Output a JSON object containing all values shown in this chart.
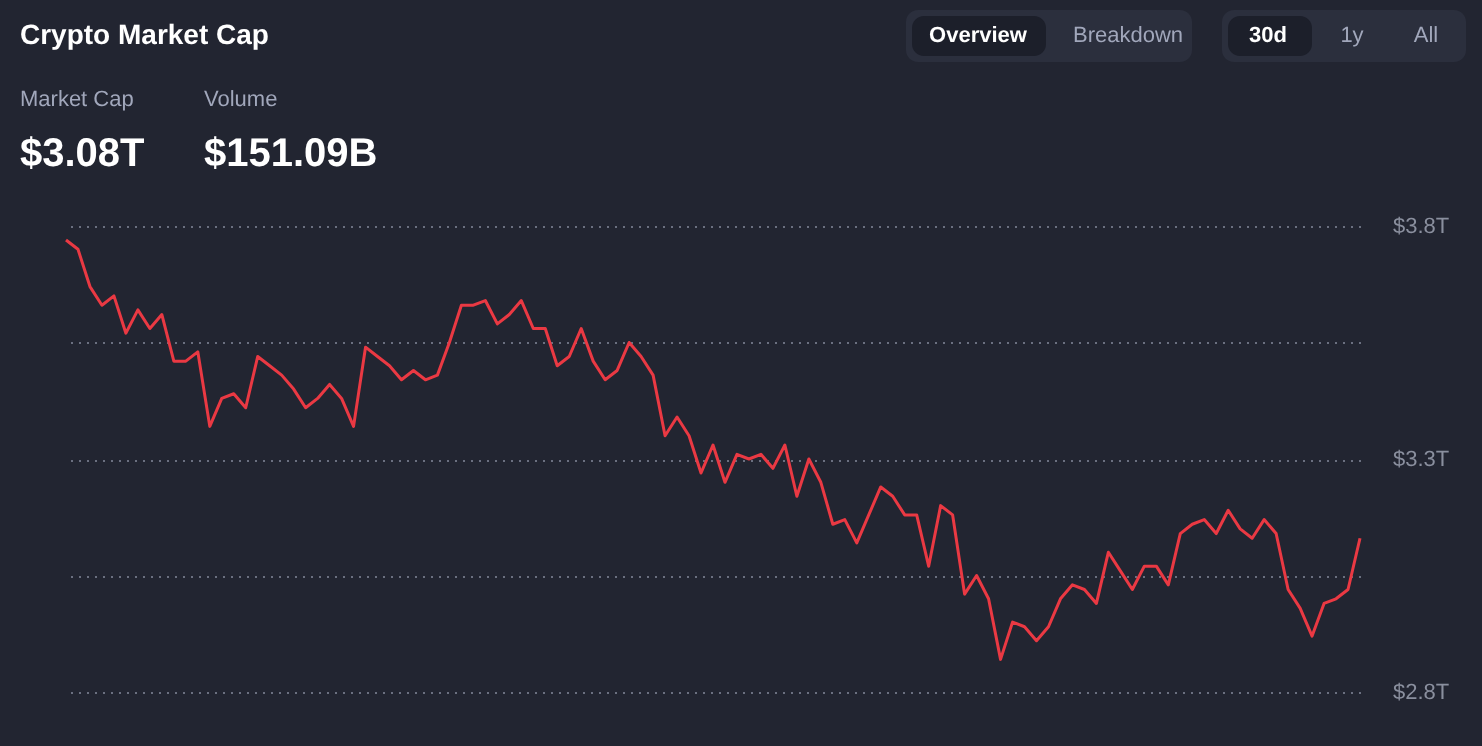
{
  "chart_data": {
    "type": "line",
    "title": "Crypto Market Cap",
    "annotations": [
      "Market Cap",
      "$3.08T",
      "Volume",
      "$151.09B",
      "Overview",
      "Breakdown",
      "30d",
      "1y",
      "All"
    ],
    "categories": [
      null,
      null,
      null,
      null,
      null,
      null,
      null,
      null,
      null,
      null,
      null,
      null,
      null,
      null,
      null,
      null,
      null,
      null,
      null,
      null,
      null,
      null,
      null,
      null,
      null,
      null,
      null,
      null,
      null,
      null,
      null,
      null,
      null,
      null,
      null,
      null,
      null,
      null,
      null,
      null,
      null,
      null,
      null,
      null,
      null,
      null,
      null,
      null,
      null,
      null,
      null,
      null,
      null,
      null,
      null,
      null,
      null,
      null,
      null,
      null,
      null,
      null,
      null,
      null,
      null,
      null,
      null,
      null,
      null,
      null,
      null,
      null,
      null,
      null,
      null,
      null,
      null,
      null,
      null,
      null,
      null,
      null,
      null,
      null,
      null,
      null,
      null,
      null,
      null,
      null,
      null,
      null,
      null,
      null,
      null,
      null,
      null,
      null,
      null,
      null,
      null,
      null,
      null,
      null,
      null,
      null,
      null,
      null,
      null
    ],
    "values": [
      3.77,
      3.75,
      3.67,
      3.63,
      3.65,
      3.57,
      3.62,
      3.58,
      3.61,
      3.51,
      3.51,
      3.53,
      3.37,
      3.43,
      3.44,
      3.41,
      3.52,
      3.5,
      3.48,
      3.45,
      3.41,
      3.43,
      3.46,
      3.43,
      3.37,
      3.54,
      3.52,
      3.5,
      3.47,
      3.49,
      3.47,
      3.48,
      3.55,
      3.63,
      3.63,
      3.64,
      3.59,
      3.61,
      3.64,
      3.58,
      3.58,
      3.5,
      3.52,
      3.58,
      3.51,
      3.47,
      3.49,
      3.55,
      3.52,
      3.48,
      3.35,
      3.39,
      3.35,
      3.27,
      3.33,
      3.25,
      3.31,
      3.3,
      3.31,
      3.28,
      3.33,
      3.22,
      3.3,
      3.25,
      3.16,
      3.17,
      3.12,
      3.18,
      3.24,
      3.22,
      3.18,
      3.18,
      3.07,
      3.2,
      3.18,
      3.01,
      3.05,
      3.0,
      2.87,
      2.95,
      2.94,
      2.91,
      2.94,
      3.0,
      3.03,
      3.02,
      2.99,
      3.1,
      3.06,
      3.02,
      3.07,
      3.07,
      3.03,
      3.14,
      3.16,
      3.17,
      3.14,
      3.19,
      3.15,
      3.13,
      3.17,
      3.14,
      3.02,
      2.98,
      2.92,
      2.99,
      3.0,
      3.02,
      3.13
    ],
    "color": "#ea3943",
    "ylim": [
      2.8,
      3.8
    ],
    "yticks": [
      {
        "value": 3.8,
        "label": "$3.8T"
      },
      {
        "value": 3.55,
        "label": null
      },
      {
        "value": 3.3,
        "label": "$3.3T"
      },
      {
        "value": 3.05,
        "label": null
      },
      {
        "value": 2.8,
        "label": "$2.8T"
      }
    ],
    "grid": "y",
    "tick_labels": "y"
  }
}
